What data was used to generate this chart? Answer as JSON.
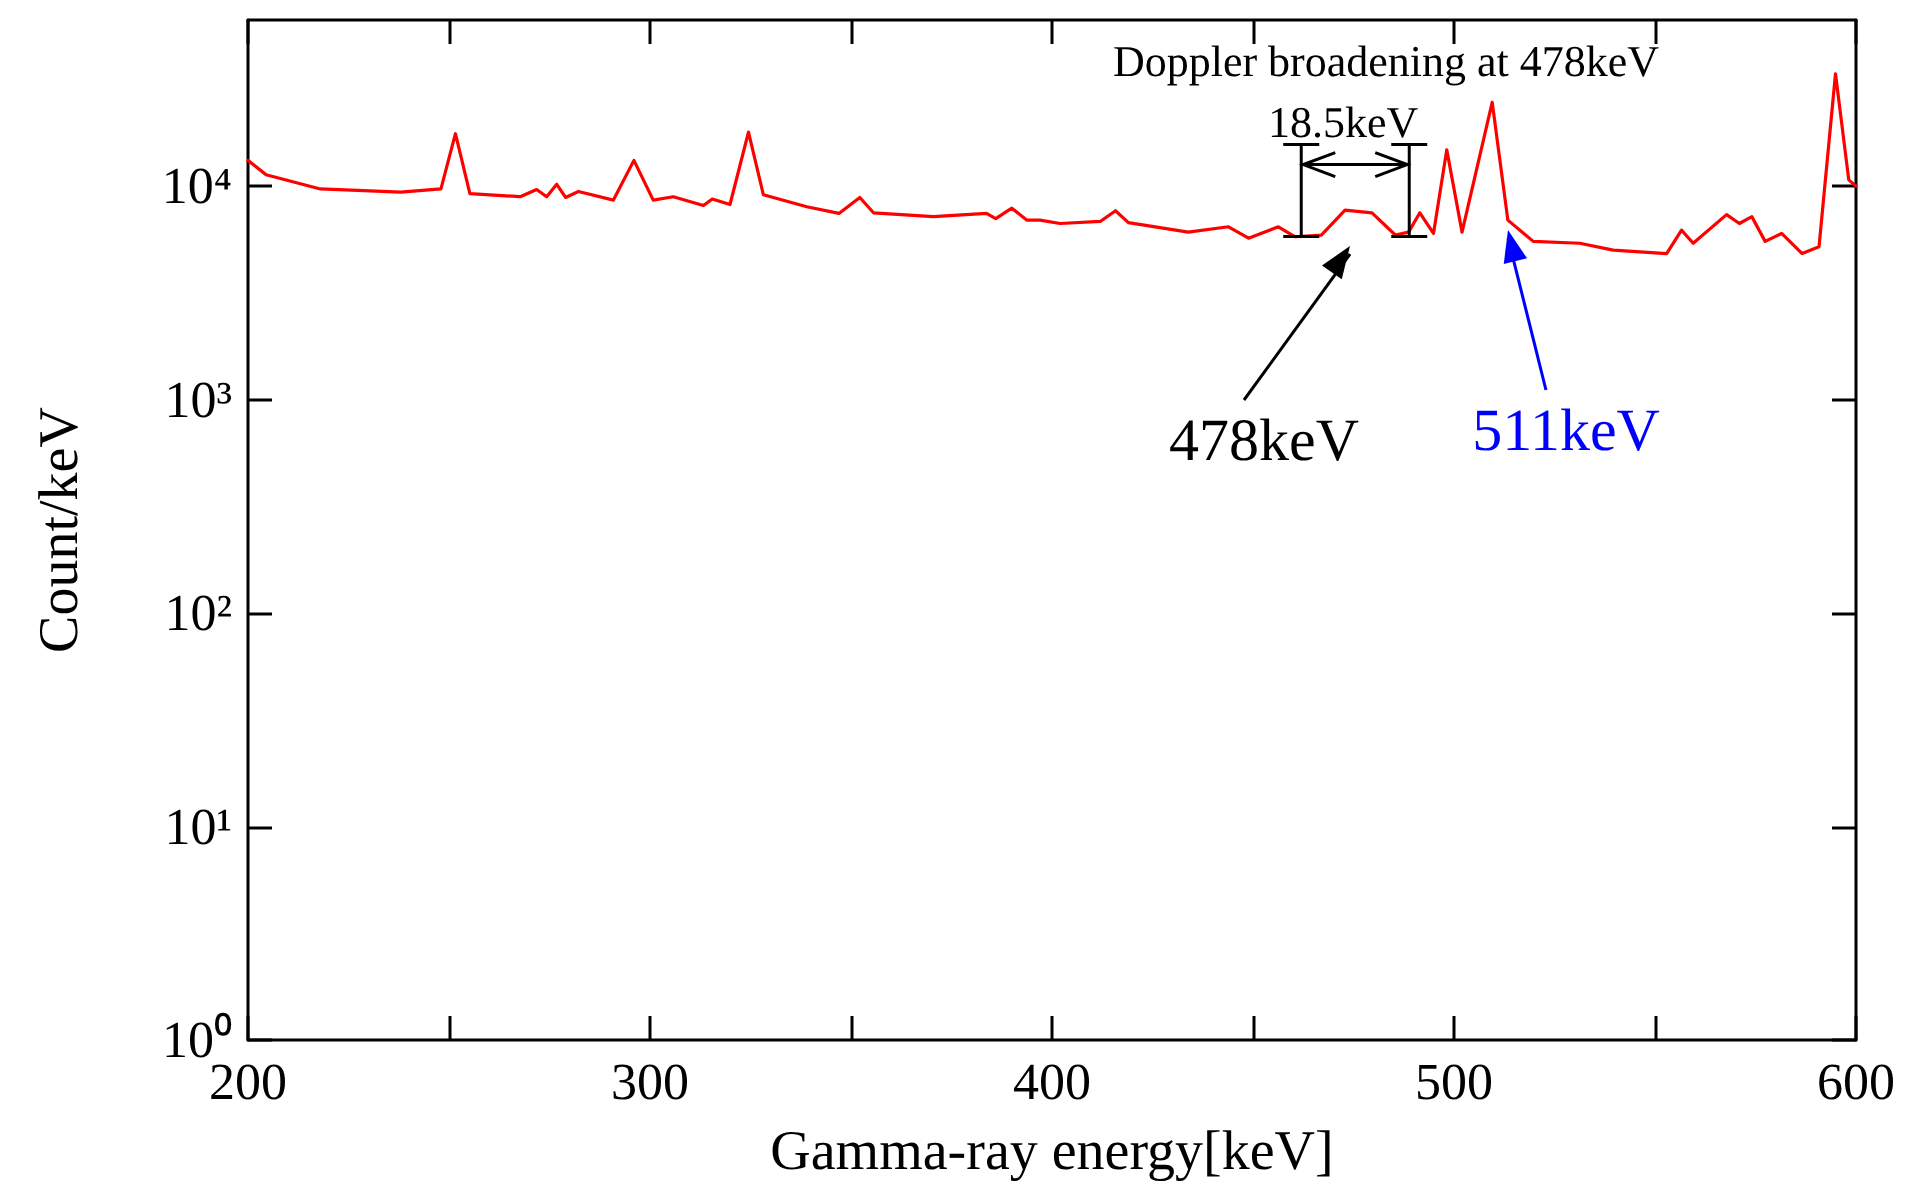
{
  "chart_data": {
    "type": "line",
    "xlabel": "Gamma-ray energy[keV]",
    "ylabel": "Count/keV",
    "xlim": [
      200,
      600
    ],
    "xticks": [
      200,
      {
        "value": 250,
        "label": null
      },
      300,
      {
        "value": 350,
        "label": null
      },
      400,
      {
        "value": 450,
        "label": null
      },
      500,
      {
        "value": 550,
        "label": null
      },
      600
    ],
    "ylim": [
      1,
      60000
    ],
    "log": true,
    "yticks": [
      {
        "value": 1,
        "label": "10⁰"
      },
      {
        "value": 10,
        "label": "10¹"
      },
      {
        "value": 100,
        "label": "10²"
      },
      {
        "value": 1000,
        "label": "10³"
      },
      {
        "value": 10000,
        "label": "10⁴"
      }
    ],
    "grid": false,
    "marker": "none",
    "line_style": "solid",
    "series": [
      {
        "color": "#ff0000",
        "x": [
          200,
          204.5,
          218,
          238,
          248,
          251.6,
          255.2,
          267.7,
          271.8,
          274.3,
          276.8,
          279,
          282.2,
          290.9,
          296,
          300.8,
          305.8,
          313.3,
          315.5,
          319.9,
          324.5,
          328.2,
          339,
          347,
          352.2,
          355.6,
          370.5,
          383.7,
          386,
          390,
          393.7,
          397,
          402,
          412,
          415.8,
          419,
          433.9,
          443.9,
          448.9,
          456.3,
          460.5,
          467,
          472.9,
          479.6,
          485.4,
          488.7,
          491.5,
          494.9,
          498.2,
          502,
          509.5,
          513.4,
          519.7,
          531.3,
          539.6,
          552.9,
          556.6,
          559.5,
          567.8,
          571,
          574.1,
          577.4,
          581.5,
          586.6,
          590.8,
          594.9,
          598.2,
          600
        ],
        "values": [
          13200,
          11300,
          9700,
          9370,
          9700,
          17600,
          9230,
          8920,
          9640,
          8920,
          10200,
          8850,
          9440,
          8600,
          13200,
          8600,
          8920,
          8110,
          8700,
          8200,
          17900,
          9110,
          8000,
          7450,
          8850,
          7500,
          7190,
          7450,
          7040,
          7880,
          6930,
          6930,
          6680,
          6830,
          7670,
          6740,
          6090,
          6450,
          5700,
          6450,
          5790,
          5900,
          7720,
          7500,
          5900,
          6090,
          7500,
          6000,
          14800,
          6090,
          24700,
          6930,
          5510,
          5400,
          5010,
          4830,
          6220,
          5400,
          7350,
          6680,
          7190,
          5510,
          6000,
          4830,
          5200,
          33600,
          10700,
          10000
        ]
      }
    ],
    "annotations": [
      "Doppler broadening at 478keV",
      {
        "text": "18.5keV",
        "x": 462,
        "y": 5800
      },
      "478keV",
      "511keV"
    ]
  }
}
